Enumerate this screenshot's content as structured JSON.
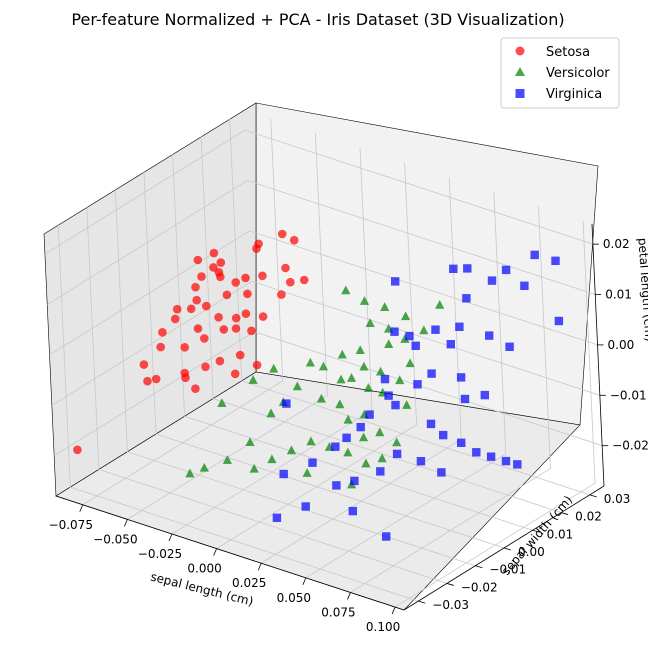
{
  "chart_data": {
    "type": "scatter",
    "title": "Per-feature Normalized + PCA - Iris Dataset (3D Visualization)",
    "xlabel": "sepal length (cm)",
    "ylabel": "sepal width (cm)",
    "zlabel": "petal length (cm)",
    "xlim": [
      -0.09,
      0.105
    ],
    "ylim": [
      -0.035,
      0.035
    ],
    "zlim": [
      -0.028,
      0.024
    ],
    "xticks": [
      "−0.075",
      "−0.050",
      "−0.025",
      "0.000",
      "0.025",
      "0.050",
      "0.075",
      "0.100"
    ],
    "yticks": [
      "−0.03",
      "−0.02",
      "−0.01",
      "0.00",
      "0.01",
      "0.02",
      "0.03"
    ],
    "zticks": [
      "−0.02",
      "−0.01",
      "0.00",
      "0.01",
      "0.02"
    ],
    "grid": true,
    "legend_position": "top-right",
    "series": [
      {
        "name": "Setosa",
        "color": "#ff0000",
        "marker": "circle",
        "points": [
          [
            -0.055,
            -0.004,
            0.012
          ],
          [
            -0.05,
            -0.006,
            0.01
          ],
          [
            -0.048,
            -0.003,
            0.011
          ],
          [
            -0.044,
            -0.005,
            0.015
          ],
          [
            -0.046,
            -0.002,
            0.009
          ],
          [
            -0.052,
            -0.007,
            0.008
          ],
          [
            -0.042,
            -0.004,
            0.013
          ],
          [
            -0.04,
            -0.006,
            0.012
          ],
          [
            -0.058,
            -0.01,
            0.004
          ],
          [
            -0.056,
            -0.012,
            0.003
          ],
          [
            -0.05,
            -0.01,
            0.005
          ],
          [
            -0.045,
            -0.011,
            0.002
          ],
          [
            -0.043,
            -0.009,
            0.006
          ],
          [
            -0.06,
            -0.015,
            -0.002
          ],
          [
            -0.062,
            -0.013,
            0.0
          ],
          [
            -0.048,
            -0.014,
            -0.001
          ],
          [
            -0.04,
            -0.012,
            0.001
          ],
          [
            -0.038,
            -0.008,
            0.004
          ],
          [
            -0.036,
            -0.006,
            0.008
          ],
          [
            -0.034,
            -0.004,
            0.01
          ],
          [
            -0.03,
            -0.003,
            0.011
          ],
          [
            -0.032,
            -0.01,
            0.003
          ],
          [
            -0.028,
            -0.008,
            0.005
          ],
          [
            -0.026,
            -0.005,
            0.009
          ],
          [
            -0.024,
            -0.007,
            0.006
          ],
          [
            -0.035,
            -0.015,
            -0.003
          ],
          [
            -0.042,
            -0.018,
            -0.004
          ],
          [
            -0.055,
            -0.02,
            -0.006
          ],
          [
            -0.065,
            -0.018,
            -0.005
          ],
          [
            -0.06,
            -0.02,
            -0.007
          ],
          [
            -0.045,
            -0.016,
            -0.006
          ],
          [
            -0.038,
            -0.017,
            -0.007
          ],
          [
            -0.03,
            -0.013,
            -0.002
          ],
          [
            -0.02,
            -0.012,
            0.0
          ],
          [
            -0.018,
            -0.009,
            0.004
          ],
          [
            -0.016,
            -0.006,
            0.006
          ],
          [
            -0.022,
            -0.002,
            0.012
          ],
          [
            -0.012,
            0.0,
            0.014
          ],
          [
            -0.01,
            -0.003,
            0.01
          ],
          [
            -0.008,
            -0.001,
            0.012
          ],
          [
            -0.014,
            -0.01,
            -0.002
          ],
          [
            0.005,
            -0.004,
            0.015
          ],
          [
            -0.085,
            -0.03,
            -0.02
          ],
          [
            -0.025,
            -0.01,
            0.004
          ],
          [
            -0.05,
            -0.008,
            0.006
          ],
          [
            -0.028,
            0.0,
            0.016
          ],
          [
            -0.018,
            0.003,
            0.019
          ],
          [
            -0.013,
            0.004,
            0.018
          ],
          [
            -0.03,
            0.002,
            0.016
          ],
          [
            -0.02,
            -0.014,
            -0.003
          ]
        ]
      },
      {
        "name": "Versicolor",
        "color": "#008000",
        "marker": "triangle",
        "points": [
          [
            0.005,
            0.01,
            0.008
          ],
          [
            0.012,
            0.012,
            0.006
          ],
          [
            0.018,
            0.01,
            0.003
          ],
          [
            0.02,
            0.014,
            0.005
          ],
          [
            0.025,
            0.012,
            0.002
          ],
          [
            0.03,
            0.015,
            0.004
          ],
          [
            0.028,
            0.01,
            0.0
          ],
          [
            0.034,
            0.012,
            0.001
          ],
          [
            0.015,
            0.008,
            -0.002
          ],
          [
            0.02,
            0.006,
            -0.004
          ],
          [
            0.026,
            0.008,
            -0.005
          ],
          [
            0.03,
            0.006,
            -0.008
          ],
          [
            0.035,
            0.009,
            -0.006
          ],
          [
            0.038,
            0.011,
            -0.003
          ],
          [
            0.01,
            0.004,
            -0.007
          ],
          [
            0.005,
            0.0,
            -0.01
          ],
          [
            0.012,
            0.002,
            -0.011
          ],
          [
            0.018,
            0.001,
            -0.013
          ],
          [
            0.024,
            0.003,
            -0.012
          ],
          [
            0.028,
            0.0,
            -0.015
          ],
          [
            0.034,
            0.002,
            -0.014
          ],
          [
            -0.005,
            -0.002,
            -0.008
          ],
          [
            -0.01,
            -0.004,
            -0.011
          ],
          [
            -0.014,
            -0.006,
            -0.013
          ],
          [
            -0.02,
            -0.01,
            -0.018
          ],
          [
            -0.03,
            -0.012,
            -0.022
          ],
          [
            -0.04,
            -0.014,
            -0.024
          ],
          [
            -0.045,
            -0.016,
            -0.025
          ],
          [
            -0.008,
            -0.01,
            -0.02
          ],
          [
            0.0,
            -0.008,
            -0.018
          ],
          [
            0.008,
            -0.006,
            -0.016
          ],
          [
            0.015,
            -0.004,
            -0.017
          ],
          [
            0.022,
            -0.002,
            -0.018
          ],
          [
            0.032,
            -0.002,
            -0.019
          ],
          [
            0.04,
            0.004,
            -0.016
          ],
          [
            0.045,
            0.012,
            0.004
          ],
          [
            0.048,
            0.016,
            0.008
          ],
          [
            -0.025,
            -0.005,
            -0.008
          ],
          [
            -0.018,
            -0.002,
            -0.006
          ],
          [
            0.002,
            0.003,
            -0.005
          ],
          [
            0.008,
            0.006,
            -0.003
          ],
          [
            -0.035,
            -0.01,
            -0.012
          ],
          [
            -0.015,
            -0.012,
            -0.022
          ],
          [
            0.01,
            -0.009,
            -0.021
          ],
          [
            0.03,
            -0.006,
            -0.022
          ],
          [
            0.04,
            0.008,
            -0.01
          ],
          [
            0.022,
            0.006,
            -0.008
          ],
          [
            0.016,
            0.004,
            -0.006
          ],
          [
            -0.002,
            0.001,
            -0.004
          ],
          [
            0.038,
            0.0,
            -0.018
          ]
        ]
      },
      {
        "name": "Virginica",
        "color": "#0000ff",
        "marker": "square",
        "points": [
          [
            0.03,
            0.012,
            0.012
          ],
          [
            0.05,
            0.02,
            0.014
          ],
          [
            0.058,
            0.02,
            0.015
          ],
          [
            0.065,
            0.024,
            0.012
          ],
          [
            0.07,
            0.026,
            0.014
          ],
          [
            0.08,
            0.026,
            0.012
          ],
          [
            0.06,
            0.018,
            0.01
          ],
          [
            0.055,
            0.01,
            0.006
          ],
          [
            0.035,
            0.008,
            0.004
          ],
          [
            0.04,
            0.01,
            0.003
          ],
          [
            0.045,
            0.009,
            0.002
          ],
          [
            0.06,
            0.012,
            0.003
          ],
          [
            0.072,
            0.018,
            0.004
          ],
          [
            0.08,
            0.02,
            0.002
          ],
          [
            0.09,
            0.024,
            0.02
          ],
          [
            0.095,
            0.028,
            0.018
          ],
          [
            0.092,
            0.03,
            0.005
          ],
          [
            0.05,
            0.006,
            -0.004
          ],
          [
            0.055,
            0.008,
            -0.002
          ],
          [
            0.065,
            0.012,
            -0.003
          ],
          [
            0.07,
            0.01,
            -0.006
          ],
          [
            0.078,
            0.012,
            -0.005
          ],
          [
            0.04,
            0.002,
            -0.006
          ],
          [
            0.042,
            0.003,
            -0.008
          ],
          [
            0.032,
            0.0,
            -0.01
          ],
          [
            0.03,
            -0.002,
            -0.012
          ],
          [
            0.025,
            -0.004,
            -0.014
          ],
          [
            0.02,
            -0.005,
            -0.016
          ],
          [
            0.06,
            0.004,
            -0.01
          ],
          [
            0.065,
            0.005,
            -0.012
          ],
          [
            0.07,
            0.008,
            -0.014
          ],
          [
            0.075,
            0.01,
            -0.016
          ],
          [
            0.08,
            0.012,
            -0.017
          ],
          [
            0.085,
            0.014,
            -0.018
          ],
          [
            0.088,
            0.016,
            -0.019
          ],
          [
            0.05,
            -0.002,
            -0.015
          ],
          [
            0.045,
            -0.005,
            -0.018
          ],
          [
            0.035,
            -0.008,
            -0.02
          ],
          [
            0.028,
            -0.01,
            -0.021
          ],
          [
            0.04,
            -0.012,
            -0.024
          ],
          [
            0.06,
            0.0,
            -0.016
          ],
          [
            0.015,
            -0.01,
            -0.018
          ],
          [
            0.005,
            -0.014,
            -0.02
          ],
          [
            0.01,
            -0.02,
            -0.026
          ],
          [
            0.02,
            -0.016,
            -0.024
          ],
          [
            0.055,
            -0.01,
            -0.028
          ],
          [
            -0.005,
            -0.006,
            -0.01
          ],
          [
            0.035,
            0.004,
            -0.004
          ],
          [
            0.068,
            0.002,
            -0.018
          ],
          [
            0.062,
            0.014,
            0.006
          ]
        ]
      }
    ]
  }
}
